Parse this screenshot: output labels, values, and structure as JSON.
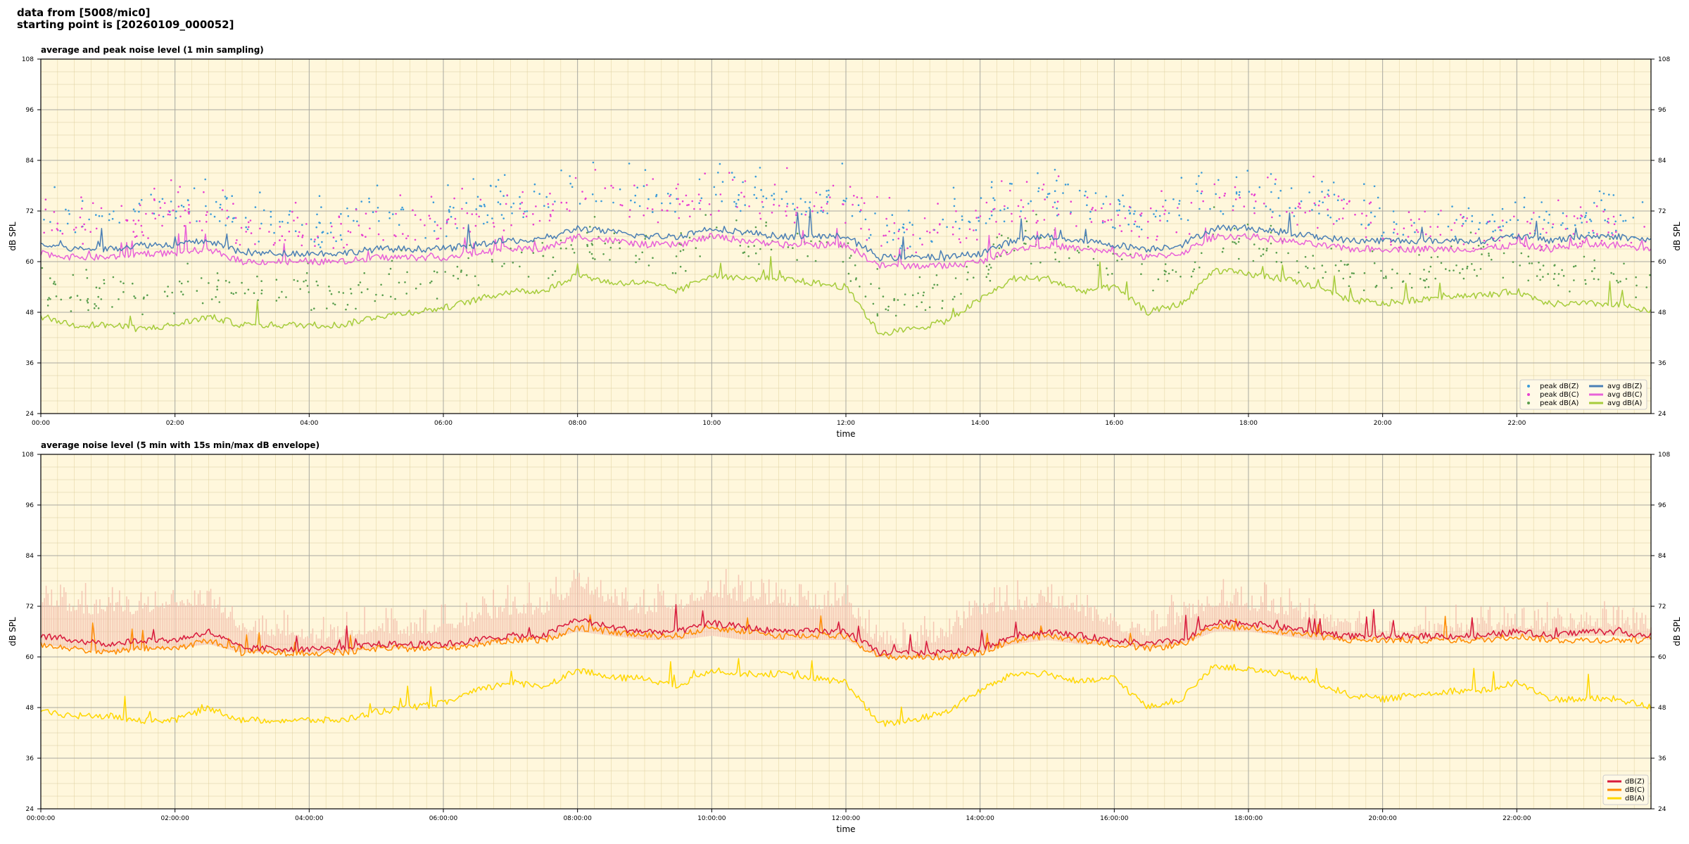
{
  "header": {
    "line1": "data from [5008/mic0]",
    "line2": "starting point is [20260109_000052]"
  },
  "colors": {
    "background": "#fff7dc",
    "z_peak": "#3a9bd9",
    "c_peak": "#e83fd0",
    "a_peak": "#5a9e4e",
    "z_avg": "#4a7fb5",
    "c_avg": "#e862d8",
    "a_avg": "#a6cc3c",
    "z_5min": "#d81a3c",
    "c_5min": "#ff8c00",
    "a_5min": "#ffd700",
    "envelope": "#f2b8a8"
  },
  "chart_data": [
    {
      "type": "line",
      "title": "average and peak noise level (1 min sampling)",
      "xlabel": "time",
      "ylabel": "dB SPL",
      "ylim": [
        24,
        108
      ],
      "xlim_hours": [
        0,
        24
      ],
      "y_ticks": [
        "24",
        "36",
        "48",
        "60",
        "72",
        "84",
        "96",
        "108"
      ],
      "x_ticks": [
        "00:00",
        "02:00",
        "04:00",
        "06:00",
        "08:00",
        "10:00",
        "12:00",
        "14:00",
        "16:00",
        "18:00",
        "20:00",
        "22:00"
      ],
      "grid": true,
      "legend_position": "bottom-right",
      "x_hours": [
        0,
        0.5,
        1,
        1.5,
        2,
        2.5,
        3,
        3.5,
        4,
        4.5,
        5,
        5.5,
        6,
        6.5,
        7,
        7.5,
        8,
        8.5,
        9,
        9.5,
        10,
        10.5,
        11,
        11.5,
        12,
        12.5,
        13,
        13.5,
        14,
        14.5,
        15,
        15.5,
        16,
        16.5,
        17,
        17.5,
        18,
        18.5,
        19,
        19.5,
        20,
        20.5,
        21,
        21.5,
        22,
        22.5,
        23,
        23.5,
        24
      ],
      "series": [
        {
          "name": "avg dB(Z)",
          "color_key": "z_avg",
          "style": "line",
          "values": [
            64,
            63,
            63,
            64,
            64,
            65,
            62,
            62,
            62,
            62,
            63,
            63,
            63,
            64,
            65,
            65,
            68,
            67,
            66,
            66,
            68,
            67,
            66,
            66,
            66,
            61,
            61,
            61,
            62,
            65,
            66,
            65,
            64,
            63,
            64,
            68,
            68,
            67,
            66,
            65,
            65,
            65,
            65,
            65,
            66,
            65,
            66,
            66,
            65
          ]
        },
        {
          "name": "avg dB(C)",
          "color_key": "c_avg",
          "style": "line",
          "values": [
            62,
            61,
            61,
            62,
            62,
            63,
            60,
            60,
            60,
            60,
            61,
            61,
            61,
            62,
            63,
            63,
            66,
            65,
            64,
            64,
            66,
            65,
            64,
            64,
            64,
            59,
            59,
            59,
            60,
            63,
            64,
            63,
            62,
            61,
            62,
            66,
            66,
            65,
            64,
            63,
            63,
            63,
            63,
            63,
            64,
            63,
            64,
            64,
            63
          ]
        },
        {
          "name": "avg dB(A)",
          "color_key": "a_avg",
          "style": "line",
          "values": [
            47,
            45,
            45,
            44,
            45,
            47,
            45,
            45,
            45,
            45,
            47,
            48,
            49,
            51,
            53,
            53,
            57,
            55,
            55,
            53,
            57,
            56,
            56,
            55,
            54,
            43,
            44,
            46,
            51,
            56,
            56,
            53,
            54,
            48,
            50,
            58,
            57,
            56,
            54,
            51,
            50,
            51,
            52,
            52,
            53,
            50,
            50,
            50,
            48
          ]
        },
        {
          "name": "peak dB(Z)",
          "color_key": "z_peak",
          "style": "dots",
          "values": [
            70,
            69,
            68,
            70,
            71,
            72,
            67,
            67,
            66,
            66,
            69,
            68,
            68,
            70,
            72,
            72,
            76,
            74,
            73,
            73,
            75,
            74,
            73,
            73,
            73,
            66,
            66,
            67,
            69,
            72,
            73,
            72,
            70,
            69,
            70,
            74,
            74,
            73,
            72,
            71,
            67,
            67,
            67,
            67,
            68,
            67,
            68,
            68,
            67
          ]
        },
        {
          "name": "peak dB(C)",
          "color_key": "c_peak",
          "style": "dots",
          "values": [
            68,
            67,
            66,
            68,
            69,
            70,
            65,
            65,
            64,
            64,
            67,
            66,
            66,
            68,
            70,
            70,
            74,
            72,
            71,
            71,
            73,
            72,
            71,
            71,
            71,
            64,
            64,
            65,
            67,
            70,
            71,
            70,
            68,
            67,
            68,
            72,
            72,
            71,
            70,
            69,
            65,
            65,
            65,
            65,
            66,
            65,
            66,
            66,
            65
          ]
        },
        {
          "name": "peak dB(A)",
          "color_key": "a_peak",
          "style": "dots",
          "values": [
            52,
            50,
            50,
            49,
            50,
            53,
            50,
            50,
            50,
            50,
            52,
            53,
            54,
            56,
            58,
            58,
            62,
            60,
            60,
            58,
            62,
            61,
            61,
            60,
            59,
            48,
            49,
            51,
            56,
            61,
            61,
            58,
            59,
            53,
            55,
            63,
            62,
            61,
            59,
            56,
            55,
            56,
            57,
            57,
            58,
            55,
            55,
            55,
            53
          ]
        }
      ]
    },
    {
      "type": "line",
      "title": "average noise level (5 min with 15s min/max dB envelope)",
      "xlabel": "time",
      "ylabel": "dB SPL",
      "ylim": [
        24,
        108
      ],
      "xlim_hours": [
        0,
        24
      ],
      "y_ticks": [
        "24",
        "36",
        "48",
        "60",
        "72",
        "84",
        "96",
        "108"
      ],
      "x_ticks": [
        "00:00:00",
        "02:00:00",
        "04:00:00",
        "06:00:00",
        "08:00:00",
        "10:00:00",
        "12:00:00",
        "14:00:00",
        "16:00:00",
        "18:00:00",
        "20:00:00",
        "22:00:00"
      ],
      "grid": true,
      "legend_position": "bottom-right",
      "x_hours": [
        0,
        0.5,
        1,
        1.5,
        2,
        2.5,
        3,
        3.5,
        4,
        4.5,
        5,
        5.5,
        6,
        6.5,
        7,
        7.5,
        8,
        8.5,
        9,
        9.5,
        10,
        10.5,
        11,
        11.5,
        12,
        12.5,
        13,
        13.5,
        14,
        14.5,
        15,
        15.5,
        16,
        16.5,
        17,
        17.5,
        18,
        18.5,
        19,
        19.5,
        20,
        20.5,
        21,
        21.5,
        22,
        22.5,
        23,
        23.5,
        24
      ],
      "envelope_max": [
        72,
        70,
        70,
        70,
        72,
        72,
        66,
        64,
        63,
        64,
        66,
        65,
        66,
        68,
        70,
        70,
        76,
        72,
        70,
        71,
        74,
        73,
        72,
        71,
        72,
        62,
        62,
        64,
        70,
        71,
        72,
        70,
        66,
        65,
        68,
        72,
        71,
        70,
        68,
        66,
        65,
        65,
        65,
        66,
        67,
        66,
        67,
        67,
        66
      ],
      "envelope_min": [
        63,
        62,
        61,
        62,
        62,
        63,
        61,
        61,
        61,
        61,
        62,
        62,
        62,
        63,
        64,
        64,
        66,
        65,
        64,
        64,
        65,
        64,
        64,
        64,
        64,
        60,
        60,
        60,
        61,
        63,
        64,
        63,
        63,
        62,
        63,
        66,
        66,
        65,
        64,
        64,
        64,
        64,
        64,
        64,
        65,
        64,
        65,
        65,
        64
      ],
      "series": [
        {
          "name": "dB(Z)",
          "color_key": "z_5min",
          "values": [
            65,
            64,
            63,
            64,
            64,
            66,
            62,
            62,
            62,
            62,
            63,
            63,
            63,
            64,
            65,
            65,
            69,
            67,
            66,
            66,
            68,
            67,
            66,
            66,
            66,
            61,
            61,
            61,
            62,
            65,
            66,
            65,
            64,
            63,
            64,
            68,
            68,
            67,
            66,
            65,
            65,
            65,
            65,
            65,
            66,
            65,
            66,
            66,
            65
          ]
        },
        {
          "name": "dB(C)",
          "color_key": "c_5min",
          "values": [
            63,
            62,
            61,
            62,
            62,
            64,
            61,
            61,
            61,
            61,
            62,
            62,
            62,
            63,
            64,
            64,
            67,
            66,
            65,
            65,
            67,
            66,
            65,
            65,
            65,
            60,
            60,
            60,
            61,
            64,
            65,
            64,
            63,
            62,
            63,
            67,
            67,
            66,
            65,
            64,
            64,
            64,
            64,
            64,
            65,
            64,
            64,
            64,
            64
          ]
        },
        {
          "name": "dB(A)",
          "color_key": "a_5min",
          "values": [
            47,
            46,
            46,
            45,
            45,
            48,
            45,
            45,
            45,
            45,
            47,
            48,
            49,
            52,
            54,
            53,
            57,
            55,
            55,
            53,
            57,
            56,
            56,
            55,
            54,
            44,
            45,
            47,
            52,
            56,
            56,
            54,
            55,
            48,
            50,
            58,
            57,
            56,
            54,
            51,
            50,
            51,
            52,
            52,
            54,
            50,
            50,
            50,
            48
          ]
        }
      ]
    }
  ]
}
